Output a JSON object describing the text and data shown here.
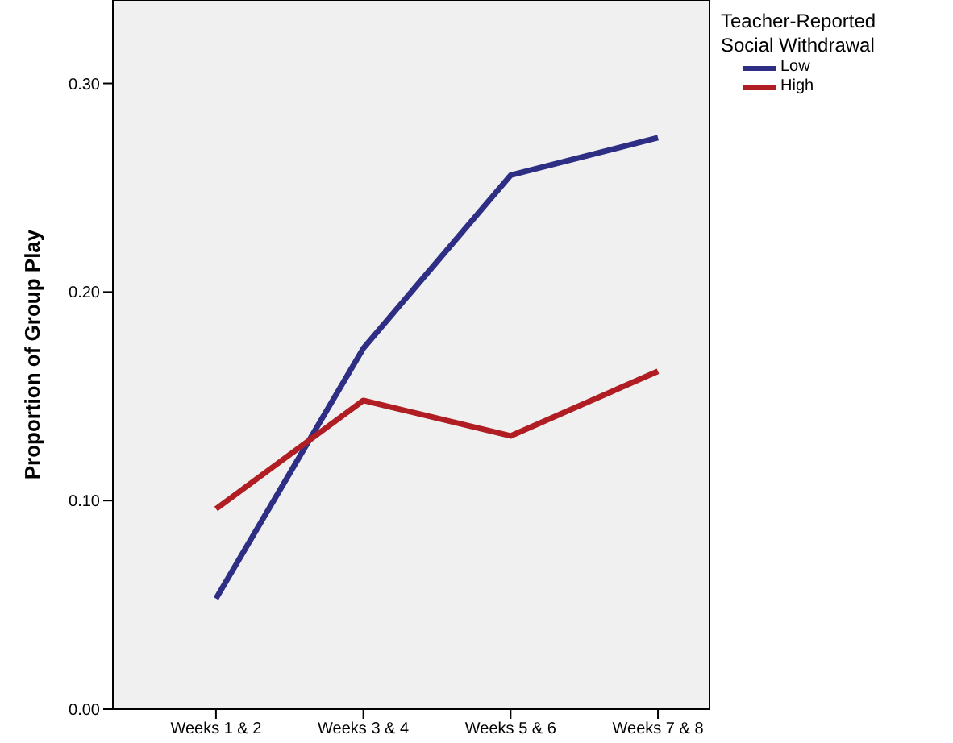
{
  "chart_data": {
    "type": "line",
    "ylabel": "Proportion of Group Play",
    "legend_title": "Teacher-Reported Social Withdrawal",
    "categories": [
      "Weeks 1 & 2",
      "Weeks 3 & 4",
      "Weeks 5 & 6",
      "Weeks 7 & 8"
    ],
    "series": [
      {
        "name": "Low",
        "color": "#2e2e84",
        "values": [
          0.053,
          0.173,
          0.256,
          0.274
        ]
      },
      {
        "name": "High",
        "color": "#b01e24",
        "values": [
          0.096,
          0.148,
          0.131,
          0.162
        ]
      }
    ],
    "ylim": [
      0,
      0.34
    ],
    "yticks": [
      {
        "value": 0,
        "label": "0.00"
      },
      {
        "value": 0.1,
        "label": "0.10"
      },
      {
        "value": 0.2,
        "label": "0.20"
      },
      {
        "value": 0.3,
        "label": "0.30"
      }
    ],
    "legend": "top right",
    "marker": "none",
    "line_style": "solid"
  }
}
